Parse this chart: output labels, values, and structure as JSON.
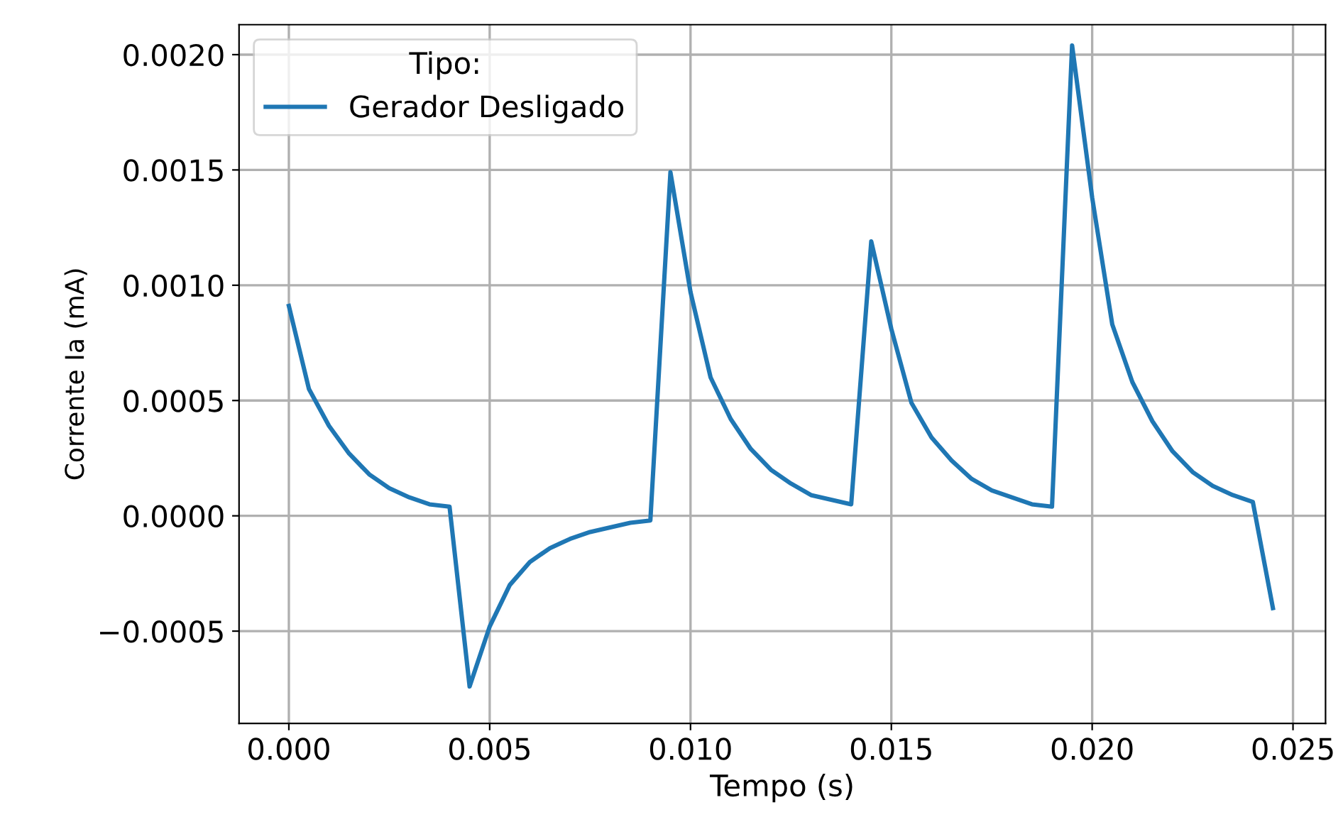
{
  "chart_data": {
    "type": "line",
    "xlabel": "Tempo (s)",
    "ylabel": "Corrente Ia (mA)",
    "legend_title": "Tipo:",
    "legend": "top left",
    "grid": true,
    "x": [
      0,
      0.0005,
      0.001,
      0.0015,
      0.002,
      0.0025,
      0.003,
      0.0035,
      0.004,
      0.0045,
      0.005,
      0.0055,
      0.006,
      0.0065,
      0.007,
      0.0075,
      0.008,
      0.0085,
      0.009,
      0.0095,
      0.01,
      0.0105,
      0.011,
      0.0115,
      0.012,
      0.0125,
      0.013,
      0.0135,
      0.014,
      0.0145,
      0.015,
      0.0155,
      0.016,
      0.0165,
      0.017,
      0.0175,
      0.018,
      0.0185,
      0.019,
      0.0195,
      0.02,
      0.0205,
      0.021,
      0.0215,
      0.022,
      0.0225,
      0.023,
      0.0235,
      0.024,
      0.0245
    ],
    "series": [
      {
        "name": "Gerador Desligado",
        "color": "#1f77b4",
        "values": [
          0.00091,
          0.00055,
          0.00039,
          0.00027,
          0.00018,
          0.00012,
          8e-05,
          5e-05,
          4e-05,
          -0.00074,
          -0.00048,
          -0.0003,
          -0.0002,
          -0.00014,
          -0.0001,
          -7e-05,
          -5e-05,
          -3e-05,
          -2e-05,
          0.00149,
          0.00097,
          0.0006,
          0.00042,
          0.00029,
          0.0002,
          0.00014,
          9e-05,
          7e-05,
          5e-05,
          0.00119,
          0.00081,
          0.00049,
          0.00034,
          0.00024,
          0.00016,
          0.00011,
          8e-05,
          5e-05,
          4e-05,
          0.00204,
          0.00138,
          0.00083,
          0.00058,
          0.00041,
          0.00028,
          0.00019,
          0.00013,
          9e-05,
          6e-05,
          -0.0004
        ]
      }
    ],
    "xlim": [
      -0.00124,
      0.02581
    ],
    "ylim": [
      -0.0009,
      0.00213
    ],
    "xticks": [
      {
        "value": 0,
        "label": "0.000"
      },
      {
        "value": 0.005,
        "label": "0.005"
      },
      {
        "value": 0.01,
        "label": "0.010"
      },
      {
        "value": 0.015,
        "label": "0.015"
      },
      {
        "value": 0.02,
        "label": "0.020"
      },
      {
        "value": 0.025,
        "label": "0.025"
      }
    ],
    "yticks": [
      {
        "value": -0.0005,
        "label": "−0.0005"
      },
      {
        "value": 0,
        "label": "0.0000"
      },
      {
        "value": 0.0005,
        "label": "0.0005"
      },
      {
        "value": 0.001,
        "label": "0.0010"
      },
      {
        "value": 0.0015,
        "label": "0.0015"
      },
      {
        "value": 0.002,
        "label": "0.0020"
      }
    ]
  }
}
